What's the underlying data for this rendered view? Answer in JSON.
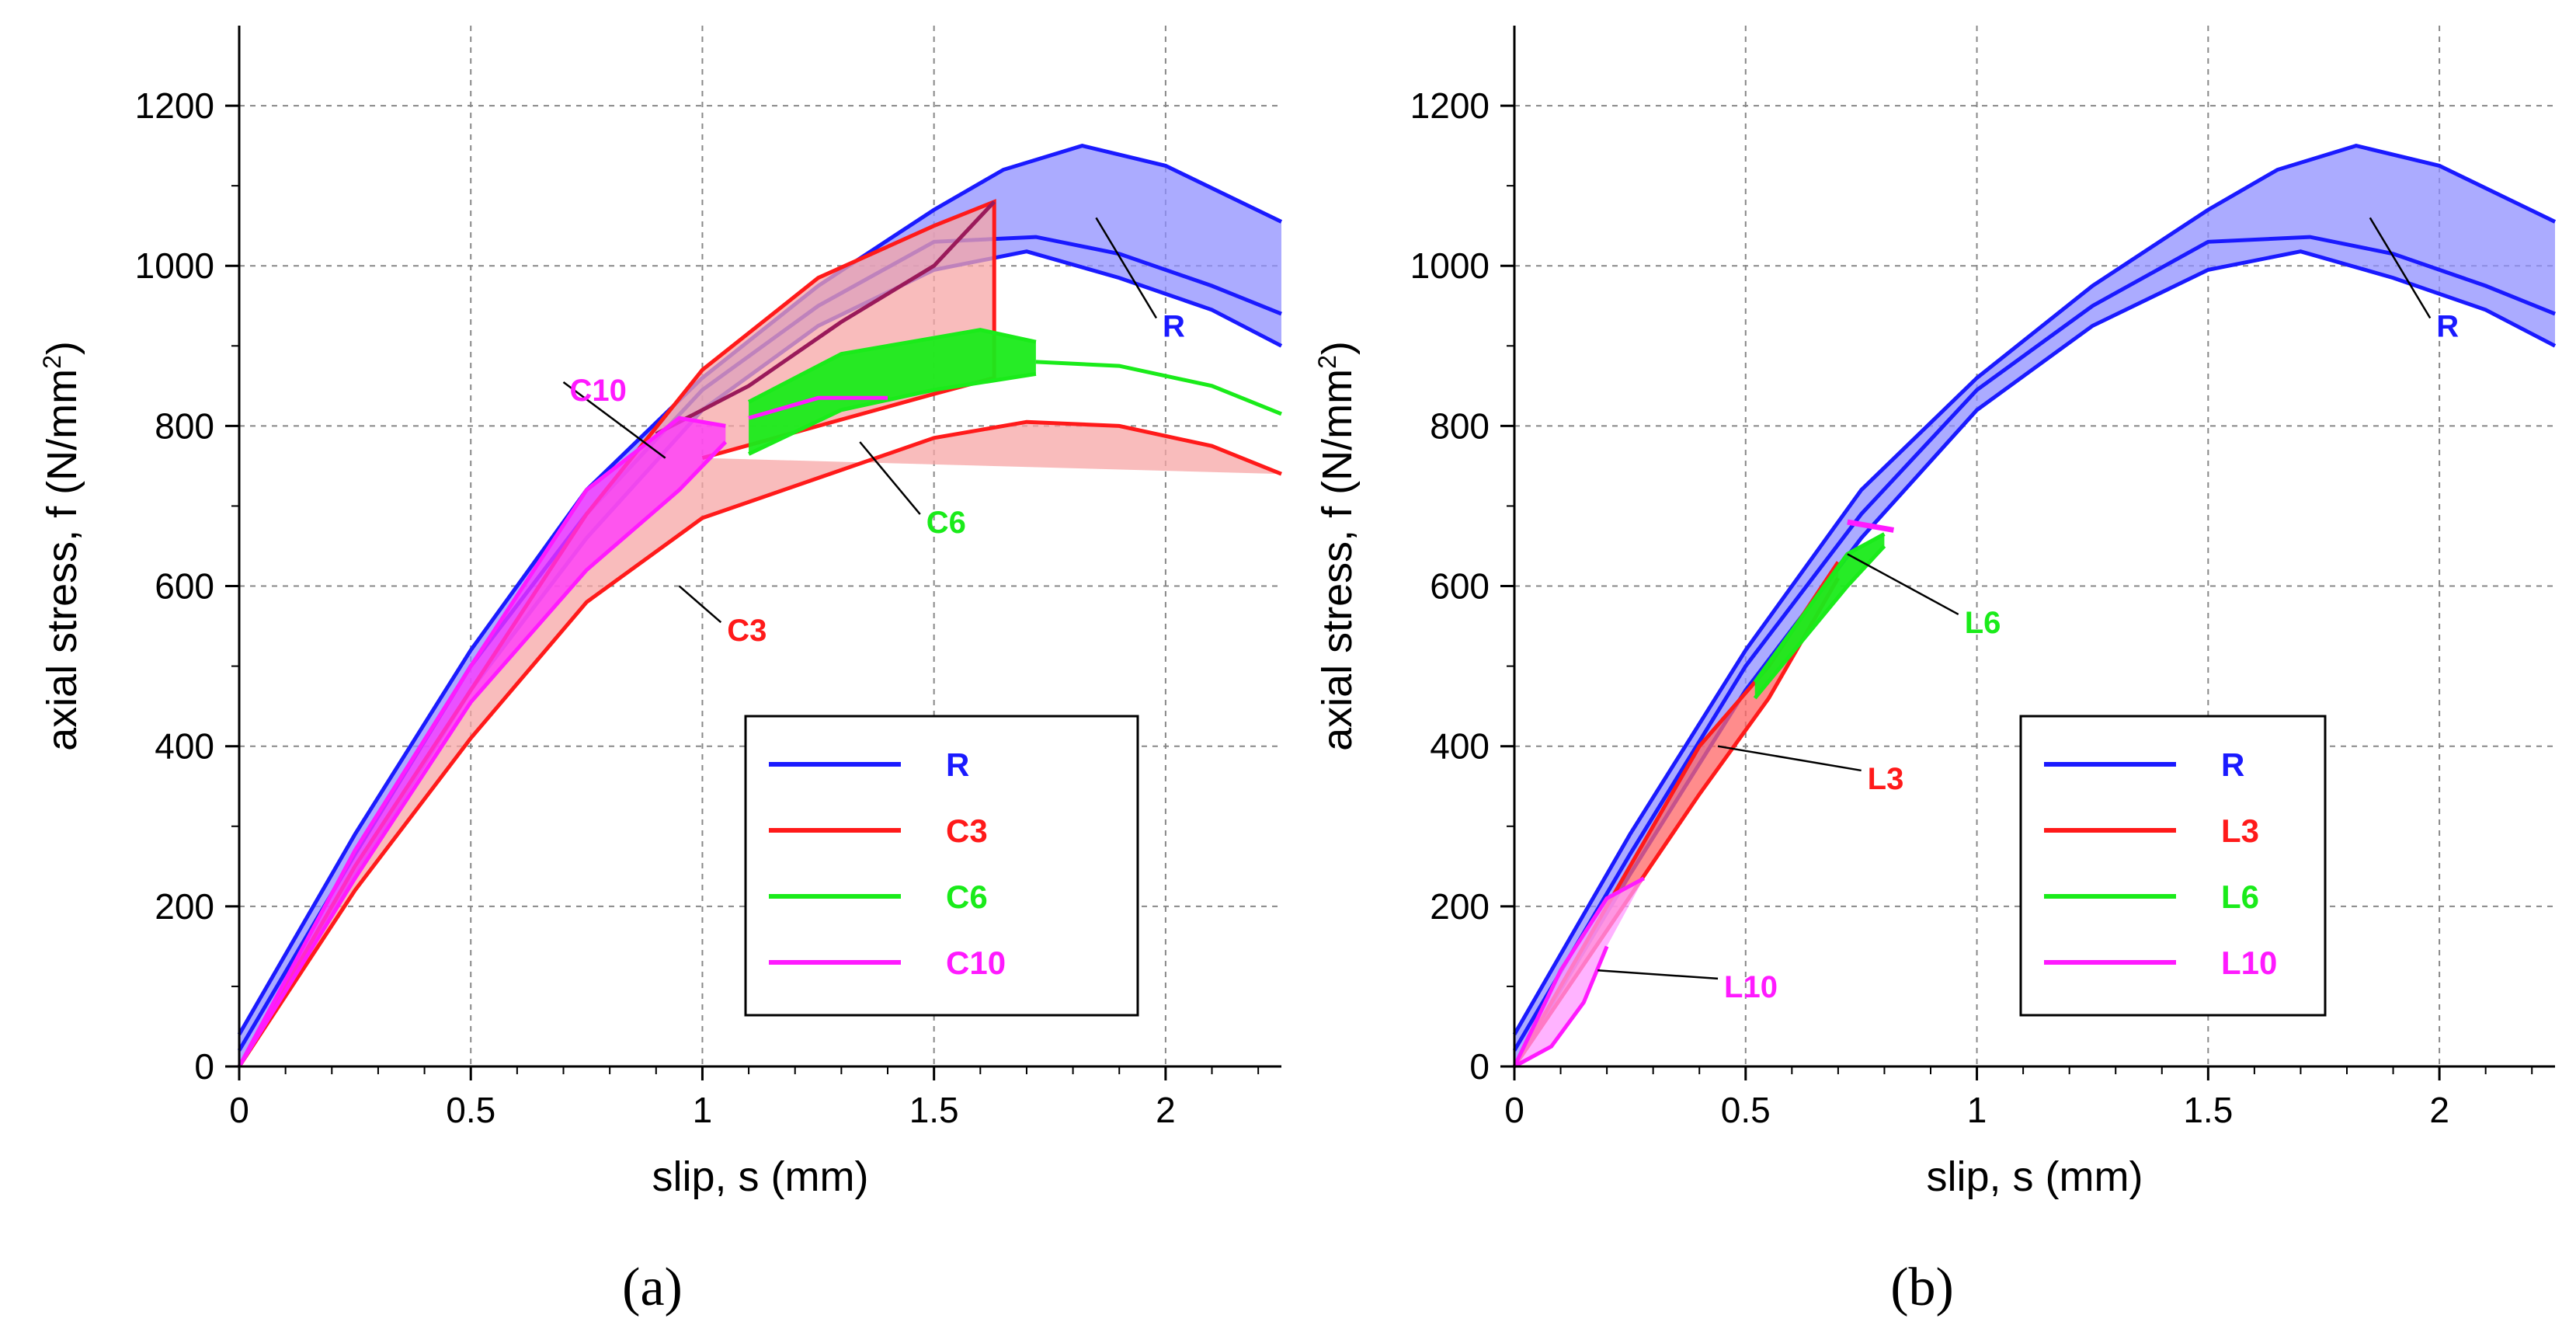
{
  "chart_data": [
    {
      "type": "area",
      "panel_label": "(a)",
      "xlabel": "slip, s (mm)",
      "ylabel_prefix": "axial stress, f (N/mm",
      "ylabel_sup": "2",
      "ylabel_suffix": ")",
      "xlim": [
        0,
        2.25
      ],
      "ylim": [
        0,
        1300
      ],
      "xticks": [
        0,
        0.5,
        1,
        1.5,
        2
      ],
      "xtick_labels": [
        "0",
        "0.5",
        "1",
        "1.5",
        "2"
      ],
      "yticks": [
        0,
        200,
        400,
        600,
        800,
        1000,
        1200
      ],
      "ytick_labels": [
        "0",
        "200",
        "400",
        "600",
        "800",
        "1000",
        "1200"
      ],
      "grid": true,
      "legend_position": "bottom-right",
      "legend": [
        {
          "label": "R",
          "color": "#1a1aff"
        },
        {
          "label": "C3",
          "color": "#ff1a1a"
        },
        {
          "label": "C6",
          "color": "#1aeb1a"
        },
        {
          "label": "C10",
          "color": "#ff1aff"
        }
      ],
      "series": [
        {
          "name": "R",
          "color": "#1a1aff",
          "fill": "#8f8fff",
          "upper": [
            [
              0,
              40
            ],
            [
              0.25,
              290
            ],
            [
              0.5,
              520
            ],
            [
              0.75,
              720
            ],
            [
              1,
              860
            ],
            [
              1.25,
              975
            ],
            [
              1.5,
              1070
            ],
            [
              1.65,
              1120
            ],
            [
              1.82,
              1150
            ],
            [
              2,
              1125
            ],
            [
              2.25,
              1055
            ]
          ],
          "lower": [
            [
              0,
              0
            ],
            [
              0.25,
              240
            ],
            [
              0.5,
              470
            ],
            [
              0.75,
              660
            ],
            [
              1,
              820
            ],
            [
              1.25,
              925
            ],
            [
              1.5,
              995
            ],
            [
              1.7,
              1018
            ],
            [
              1.9,
              985
            ],
            [
              2.1,
              945
            ],
            [
              2.25,
              900
            ]
          ],
          "mid": [
            [
              0,
              20
            ],
            [
              0.25,
              265
            ],
            [
              0.5,
              500
            ],
            [
              0.75,
              690
            ],
            [
              1,
              845
            ],
            [
              1.25,
              950
            ],
            [
              1.5,
              1030
            ],
            [
              1.72,
              1036
            ],
            [
              1.9,
              1015
            ],
            [
              2.1,
              975
            ],
            [
              2.25,
              940
            ]
          ]
        },
        {
          "name": "C3",
          "color": "#ff1a1a",
          "fill": "#f7a6a6",
          "upper": [
            [
              0,
              0
            ],
            [
              0.25,
              250
            ],
            [
              0.5,
              470
            ],
            [
              0.75,
              690
            ],
            [
              1,
              870
            ],
            [
              1.25,
              985
            ],
            [
              1.5,
              1050
            ],
            [
              1.63,
              1080
            ],
            [
              1.63,
              860
            ],
            [
              1.5,
              840
            ],
            [
              1.25,
              800
            ],
            [
              1,
              760
            ]
          ],
          "lower": [
            [
              0,
              0
            ],
            [
              0.25,
              220
            ],
            [
              0.5,
              410
            ],
            [
              0.75,
              580
            ],
            [
              1,
              685
            ],
            [
              1.25,
              735
            ],
            [
              1.5,
              785
            ],
            [
              1.7,
              805
            ],
            [
              1.9,
              800
            ],
            [
              2.1,
              775
            ],
            [
              2.25,
              740
            ]
          ],
          "top_line": [
            [
              0.9,
              790
            ],
            [
              1.1,
              850
            ],
            [
              1.3,
              930
            ],
            [
              1.5,
              1000
            ],
            [
              1.63,
              1080
            ]
          ]
        },
        {
          "name": "C6",
          "color": "#1aeb1a",
          "fill": "#1aeb1a",
          "upper": [
            [
              1.1,
              830
            ],
            [
              1.3,
              890
            ],
            [
              1.45,
              905
            ],
            [
              1.6,
              920
            ],
            [
              1.72,
              905
            ]
          ],
          "lower": [
            [
              1.1,
              765
            ],
            [
              1.3,
              820
            ],
            [
              1.5,
              845
            ],
            [
              1.72,
              865
            ]
          ],
          "tail": [
            [
              1.72,
              880
            ],
            [
              1.9,
              875
            ],
            [
              2.1,
              850
            ],
            [
              2.25,
              815
            ]
          ]
        },
        {
          "name": "C10",
          "color": "#ff1aff",
          "fill": "#ff33ff",
          "upper": [
            [
              0,
              0
            ],
            [
              0.25,
              270
            ],
            [
              0.5,
              500
            ],
            [
              0.75,
              720
            ],
            [
              0.95,
              810
            ],
            [
              1.05,
              800
            ]
          ],
          "lower": [
            [
              0,
              0
            ],
            [
              0.25,
              235
            ],
            [
              0.5,
              455
            ],
            [
              0.75,
              620
            ],
            [
              0.95,
              720
            ],
            [
              1.05,
              780
            ]
          ],
          "tail": [
            [
              1.1,
              810
            ],
            [
              1.25,
              835
            ],
            [
              1.4,
              835
            ]
          ]
        }
      ],
      "annotations": [
        {
          "label": "R",
          "color": "#1a1aff",
          "x": 1.98,
          "y": 925
        },
        {
          "label": "C3",
          "color": "#ff1a1a",
          "x": 1.04,
          "y": 545
        },
        {
          "label": "C6",
          "color": "#1aeb1a",
          "x": 1.47,
          "y": 680
        },
        {
          "label": "C10",
          "color": "#ff1aff",
          "x": 0.7,
          "y": 845
        }
      ]
    },
    {
      "type": "area",
      "panel_label": "(b)",
      "xlabel": "slip, s (mm)",
      "ylabel_prefix": "axial stress, f (N/mm",
      "ylabel_sup": "2",
      "ylabel_suffix": ")",
      "xlim": [
        0,
        2.25
      ],
      "ylim": [
        0,
        1300
      ],
      "xticks": [
        0,
        0.5,
        1,
        1.5,
        2
      ],
      "xtick_labels": [
        "0",
        "0.5",
        "1",
        "1.5",
        "2"
      ],
      "yticks": [
        0,
        200,
        400,
        600,
        800,
        1000,
        1200
      ],
      "ytick_labels": [
        "0",
        "200",
        "400",
        "600",
        "800",
        "1000",
        "1200"
      ],
      "grid": true,
      "legend_position": "bottom-right",
      "legend": [
        {
          "label": "R",
          "color": "#1a1aff"
        },
        {
          "label": "L3",
          "color": "#ff1a1a"
        },
        {
          "label": "L6",
          "color": "#1aeb1a"
        },
        {
          "label": "L10",
          "color": "#ff1aff"
        }
      ],
      "series": [
        {
          "name": "R",
          "color": "#1a1aff",
          "fill": "#8f8fff",
          "upper": [
            [
              0,
              40
            ],
            [
              0.25,
              290
            ],
            [
              0.5,
              520
            ],
            [
              0.75,
              720
            ],
            [
              1,
              860
            ],
            [
              1.25,
              975
            ],
            [
              1.5,
              1070
            ],
            [
              1.65,
              1120
            ],
            [
              1.82,
              1150
            ],
            [
              2,
              1125
            ],
            [
              2.25,
              1055
            ]
          ],
          "lower": [
            [
              0,
              0
            ],
            [
              0.25,
              240
            ],
            [
              0.5,
              470
            ],
            [
              0.75,
              660
            ],
            [
              1,
              820
            ],
            [
              1.25,
              925
            ],
            [
              1.5,
              995
            ],
            [
              1.7,
              1018
            ],
            [
              1.9,
              985
            ],
            [
              2.1,
              945
            ],
            [
              2.25,
              900
            ]
          ],
          "mid": [
            [
              0,
              20
            ],
            [
              0.25,
              265
            ],
            [
              0.5,
              500
            ],
            [
              0.75,
              690
            ],
            [
              1,
              845
            ],
            [
              1.25,
              950
            ],
            [
              1.5,
              1030
            ],
            [
              1.72,
              1036
            ],
            [
              1.9,
              1015
            ],
            [
              2.1,
              975
            ],
            [
              2.25,
              940
            ]
          ]
        },
        {
          "name": "L3",
          "color": "#ff1a1a",
          "fill": "#ff6666",
          "upper": [
            [
              0,
              0
            ],
            [
              0.2,
              200
            ],
            [
              0.4,
              400
            ],
            [
              0.55,
              500
            ],
            [
              0.7,
              630
            ]
          ],
          "lower": [
            [
              0,
              0
            ],
            [
              0.2,
              170
            ],
            [
              0.4,
              340
            ],
            [
              0.55,
              460
            ],
            [
              0.7,
              610
            ]
          ]
        },
        {
          "name": "L6",
          "color": "#1aeb1a",
          "fill": "#1aeb1a",
          "upper": [
            [
              0.52,
              480
            ],
            [
              0.62,
              560
            ],
            [
              0.72,
              640
            ],
            [
              0.8,
              665
            ]
          ],
          "lower": [
            [
              0.52,
              460
            ],
            [
              0.62,
              530
            ],
            [
              0.72,
              600
            ],
            [
              0.8,
              650
            ]
          ]
        },
        {
          "name": "L10",
          "color": "#ff1aff",
          "fill": "#ff99ff",
          "upper": [
            [
              0,
              0
            ],
            [
              0.1,
              120
            ],
            [
              0.2,
              210
            ],
            [
              0.28,
              235
            ]
          ],
          "lower": [
            [
              0,
              0
            ],
            [
              0.08,
              25
            ],
            [
              0.15,
              80
            ],
            [
              0.2,
              150
            ]
          ],
          "top": [
            [
              0.72,
              680
            ],
            [
              0.82,
              670
            ]
          ]
        }
      ],
      "annotations": [
        {
          "label": "R",
          "color": "#1a1aff",
          "x": 1.98,
          "y": 925
        },
        {
          "label": "L6",
          "color": "#1aeb1a",
          "x": 0.96,
          "y": 555
        },
        {
          "label": "L3",
          "color": "#ff1a1a",
          "x": 0.75,
          "y": 360
        },
        {
          "label": "L10",
          "color": "#ff1aff",
          "x": 0.44,
          "y": 100
        }
      ]
    }
  ]
}
